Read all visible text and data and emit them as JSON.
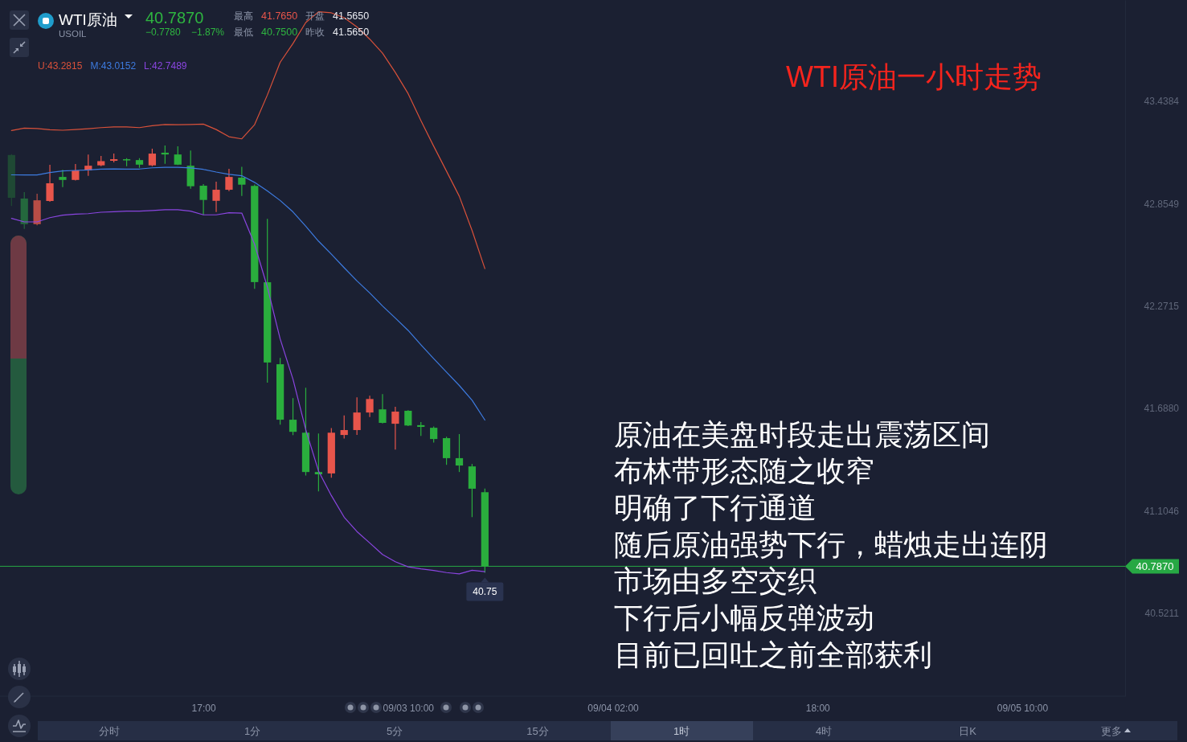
{
  "chart_data": {
    "type": "candlestick",
    "title": "WTI原油一小时走势",
    "categories": [
      null,
      null,
      null,
      null,
      null,
      null,
      null,
      null,
      null,
      null,
      null,
      null,
      null,
      null,
      null,
      "17:00",
      null,
      null,
      null,
      null,
      null,
      null,
      null,
      null,
      null,
      null,
      null,
      null,
      null,
      null,
      null,
      "09/03 10:00",
      null,
      null,
      null,
      null,
      null,
      null,
      null,
      null,
      null,
      null,
      null,
      null,
      null,
      null,
      null,
      "09/04 02:00",
      null,
      null,
      null,
      null,
      null,
      null,
      null,
      null,
      null,
      null,
      null,
      null,
      null,
      null,
      null,
      "18:00",
      null,
      null,
      null,
      null,
      null,
      null,
      null,
      null,
      null,
      null,
      null,
      null,
      null,
      null,
      null,
      "09/05 10:00",
      null,
      null,
      null,
      null,
      null,
      null,
      null,
      null
    ],
    "ohlc": [
      [
        43.13,
        43.135,
        42.84,
        42.886
      ],
      [
        42.882,
        42.918,
        42.709,
        42.736
      ],
      [
        42.736,
        42.909,
        42.73,
        42.872
      ],
      [
        42.868,
        43.074,
        42.863,
        42.969
      ],
      [
        43.005,
        43.046,
        42.947,
        42.988
      ],
      [
        42.988,
        43.079,
        42.985,
        43.042
      ],
      [
        43.042,
        43.133,
        43.011,
        43.069
      ],
      [
        43.071,
        43.124,
        43.066,
        43.095
      ],
      [
        43.097,
        43.138,
        43.088,
        43.106
      ],
      [
        43.106,
        43.112,
        43.066,
        43.101
      ],
      [
        43.101,
        43.112,
        43.057,
        43.075
      ],
      [
        43.071,
        43.166,
        43.066,
        43.138
      ],
      [
        43.143,
        43.184,
        43.08,
        43.133
      ],
      [
        43.133,
        43.179,
        43.073,
        43.075
      ],
      [
        43.069,
        43.156,
        42.938,
        42.952
      ],
      [
        42.955,
        42.964,
        42.789,
        42.874
      ],
      [
        42.869,
        42.978,
        42.805,
        42.932
      ],
      [
        42.932,
        43.051,
        42.924,
        43.005
      ],
      [
        43.001,
        43.063,
        42.897,
        42.961
      ],
      [
        42.954,
        42.962,
        42.368,
        42.406
      ],
      [
        42.405,
        42.766,
        41.833,
        41.948
      ],
      [
        41.938,
        41.974,
        41.594,
        41.622
      ],
      [
        41.622,
        41.745,
        41.534,
        41.553
      ],
      [
        41.548,
        41.804,
        41.304,
        41.324
      ],
      [
        41.324,
        41.543,
        41.214,
        41.311
      ],
      [
        41.316,
        41.574,
        41.291,
        41.548
      ],
      [
        41.535,
        41.646,
        41.515,
        41.563
      ],
      [
        41.563,
        41.749,
        41.535,
        41.663
      ],
      [
        41.663,
        41.759,
        41.637,
        41.74
      ],
      [
        41.681,
        41.768,
        41.601,
        41.604
      ],
      [
        41.599,
        41.696,
        41.452,
        41.668
      ],
      [
        41.673,
        41.676,
        41.586,
        41.589
      ],
      [
        41.591,
        41.609,
        41.53,
        41.581
      ],
      [
        41.576,
        41.584,
        41.492,
        41.512
      ],
      [
        41.517,
        41.525,
        41.365,
        41.403
      ],
      [
        41.403,
        41.54,
        41.324,
        41.361
      ],
      [
        41.356,
        41.37,
        41.067,
        41.229
      ],
      [
        41.209,
        41.23,
        40.75,
        40.787
      ],
      null,
      null,
      null,
      null,
      null,
      null,
      null,
      null,
      null,
      null,
      null,
      null,
      null,
      null,
      null,
      null,
      null,
      null,
      null,
      null,
      null,
      null,
      null,
      null,
      null,
      null,
      null,
      null,
      null,
      null,
      null,
      null,
      null,
      null,
      null,
      null,
      null,
      null,
      null,
      null,
      null,
      null,
      null,
      null,
      null,
      null,
      null,
      null,
      null,
      null
    ],
    "colors": [
      "#1f4934",
      "#24683d",
      "#b94d46",
      "#e8554b",
      "#2aae3d",
      "#e8554b",
      "#e8554b",
      "#e8554b",
      "#e8554b",
      "#2aae3d",
      "#2aae3d",
      "#e8554b",
      "#2aae3d",
      "#2aae3d",
      "#2aae3d",
      "#2aae3d",
      "#e8554b",
      "#e8554b",
      "#2aae3d",
      "#2aae3d",
      "#2aae3d",
      "#2aae3d",
      "#2aae3d",
      "#2aae3d",
      "#2aae3d",
      "#e8554b",
      "#e8554b",
      "#e8554b",
      "#e8554b",
      "#2aae3d",
      "#e8554b",
      "#2aae3d",
      "#2aae3d",
      "#2aae3d",
      "#2aae3d",
      "#2aae3d",
      "#2aae3d",
      "#2aae3d",
      null,
      null,
      null,
      null,
      null,
      null,
      null,
      null,
      null,
      null,
      null,
      null,
      null,
      null,
      null,
      null,
      null,
      null,
      null,
      null,
      null,
      null,
      null,
      null,
      null,
      null,
      null,
      null,
      null,
      null,
      null,
      null,
      null,
      null,
      null,
      null,
      null,
      null,
      null,
      null,
      null,
      null,
      null,
      null,
      null,
      null,
      null,
      null,
      null,
      null
    ],
    "series": [
      {
        "name": "U:43.2815",
        "type": "line",
        "color": "#d9513a",
        "values": [
          43.269,
          43.283,
          43.281,
          43.274,
          43.271,
          43.275,
          43.28,
          43.286,
          43.29,
          43.29,
          43.286,
          43.297,
          43.304,
          43.303,
          43.304,
          43.306,
          43.275,
          43.234,
          43.222,
          43.303,
          43.472,
          43.658,
          43.765,
          43.885,
          43.946,
          43.94,
          43.912,
          43.86,
          43.79,
          43.71,
          43.6,
          43.48,
          43.326,
          43.18,
          43.038,
          42.895,
          42.7,
          42.483,
          null,
          null,
          null,
          null,
          null,
          null,
          null,
          null,
          null,
          null,
          null,
          null,
          null,
          null,
          null,
          null,
          null,
          null,
          null,
          null,
          null,
          null,
          null,
          null,
          null,
          null,
          null,
          null,
          null,
          null,
          null,
          null,
          null,
          null,
          null,
          null,
          null,
          null,
          null,
          null,
          null,
          null,
          null,
          null,
          null,
          null,
          null,
          null,
          null,
          null
        ]
      },
      {
        "name": "M:43.0152",
        "type": "line",
        "color": "#3d7be0",
        "values": [
          43.017,
          43.016,
          43.016,
          43.03,
          43.039,
          43.042,
          43.045,
          43.05,
          43.051,
          43.05,
          43.05,
          43.057,
          43.06,
          43.06,
          43.056,
          43.048,
          43.033,
          43.02,
          43.012,
          42.974,
          42.925,
          42.871,
          42.806,
          42.724,
          42.639,
          42.565,
          42.488,
          42.413,
          42.344,
          42.27,
          42.201,
          42.131,
          42.049,
          41.97,
          41.893,
          41.817,
          41.733,
          41.62,
          null,
          null,
          null,
          null,
          null,
          null,
          null,
          null,
          null,
          null,
          null,
          null,
          null,
          null,
          null,
          null,
          null,
          null,
          null,
          null,
          null,
          null,
          null,
          null,
          null,
          null,
          null,
          null,
          null,
          null,
          null,
          null,
          null,
          null,
          null,
          null,
          null,
          null,
          null,
          null,
          null,
          null,
          null,
          null,
          null,
          null,
          null,
          null,
          null,
          null
        ]
      },
      {
        "name": "L:42.7489",
        "type": "line",
        "color": "#8a45e0",
        "values": [
          42.769,
          42.749,
          42.749,
          42.773,
          42.787,
          42.793,
          42.796,
          42.804,
          42.807,
          42.81,
          42.81,
          42.814,
          42.818,
          42.818,
          42.81,
          42.789,
          42.789,
          42.801,
          42.799,
          42.622,
          42.377,
          42.082,
          41.853,
          41.566,
          41.329,
          41.19,
          41.067,
          40.985,
          40.92,
          40.854,
          40.813,
          40.784,
          40.772,
          40.763,
          40.751,
          40.744,
          40.764,
          40.756,
          null,
          null,
          null,
          null,
          null,
          null,
          null,
          null,
          null,
          null,
          null,
          null,
          null,
          null,
          null,
          null,
          null,
          null,
          null,
          null,
          null,
          null,
          null,
          null,
          null,
          null,
          null,
          null,
          null,
          null,
          null,
          null,
          null,
          null,
          null,
          null,
          null,
          null,
          null,
          null,
          null,
          null,
          null,
          null,
          null,
          null,
          null,
          null,
          null,
          null
        ]
      }
    ],
    "ylim": [
      40.047,
      44.013
    ],
    "yticks": [
      {
        "value": 43.4384,
        "label": "43.4384"
      },
      {
        "value": 42.8549,
        "label": "42.8549"
      },
      {
        "value": 42.2715,
        "label": "42.2715"
      },
      {
        "value": 41.688,
        "label": "41.6880"
      },
      {
        "value": 41.1046,
        "label": "41.1046"
      },
      {
        "value": 40.5211,
        "label": "40.5211"
      }
    ],
    "legend": "top left",
    "ref_lines": [
      {
        "axis": "y",
        "value": 40.787,
        "label": "40.7870",
        "color": "#27a844"
      }
    ],
    "annotations": [
      "WTI原油",
      "40.7870",
      "最高",
      "41.7650",
      "开盘",
      "41.5650",
      "USOIL",
      "−0.7780",
      "−1.87%",
      "最低",
      "40.7500",
      "昨收",
      "41.5650",
      "原油在美盘时段走出震荡区间",
      "布林带形态随之收窄",
      "明确了下行通道",
      "随后原油强势下行，蜡烛走出连阴",
      "市场由多空交织",
      "下行后小幅反弹波动",
      "目前已回吐之前全部获利",
      "40.75",
      "分时",
      "1分",
      "5分",
      "15分",
      "1时",
      "4时",
      "日K",
      "更多"
    ]
  }
}
